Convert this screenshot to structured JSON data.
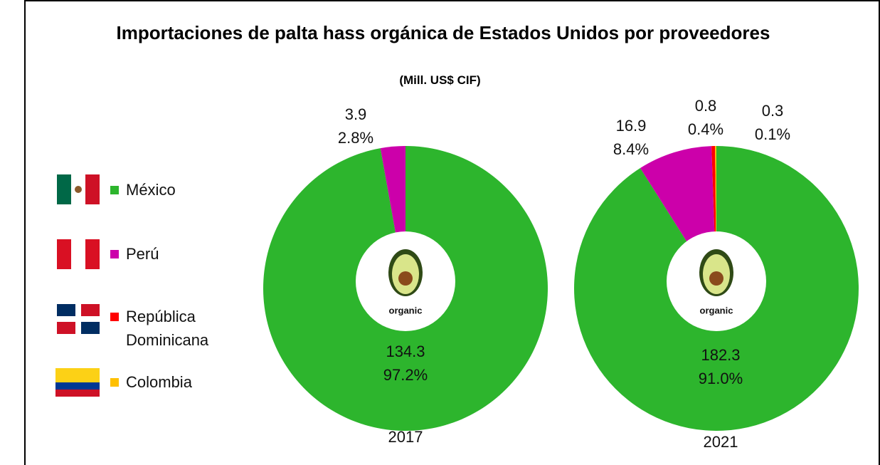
{
  "header": {
    "title": "Importaciones de palta hass orgánica de Estados Unidos por proveedores",
    "subtitle": "(Mill. US$ CIF)"
  },
  "icon_label": "organic",
  "legend": [
    {
      "name": "México",
      "color": "#2db52d"
    },
    {
      "name": "Perú",
      "color": "#cc00aa"
    },
    {
      "name": "República Dominicana",
      "color": "#ff0000"
    },
    {
      "name": "Colombia",
      "color": "#ffc000"
    }
  ],
  "chart_data": [
    {
      "type": "pie",
      "label": "2017",
      "values": [
        134.3,
        3.9
      ],
      "percent_labels": [
        "97.2%",
        "2.8%"
      ]
    },
    {
      "type": "pie",
      "label": "2021",
      "values": [
        182.3,
        16.9,
        0.8,
        0.3
      ],
      "percent_labels": [
        "91.0%",
        "8.4%",
        "0.4%",
        "0.1%"
      ]
    }
  ]
}
